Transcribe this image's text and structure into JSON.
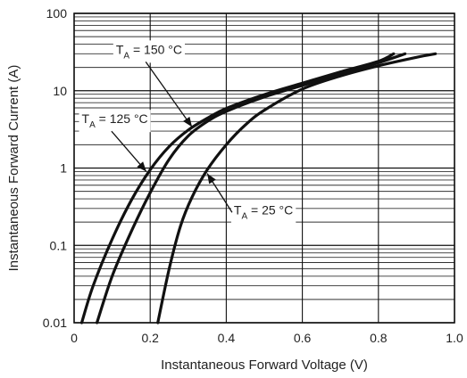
{
  "chart_data": {
    "type": "line",
    "title": "",
    "xlabel": "Instantaneous Forward Voltage (V)",
    "ylabel": "Instantaneous Forward Current (A)",
    "x_scale": "linear",
    "y_scale": "log",
    "xlim": [
      0,
      1.0
    ],
    "ylim": [
      0.01,
      100
    ],
    "x_ticks": [
      "0",
      "0.2",
      "0.4",
      "0.6",
      "0.8",
      "1.0"
    ],
    "x_tick_values": [
      0,
      0.2,
      0.4,
      0.6,
      0.8,
      1.0
    ],
    "y_ticks": [
      "0.01",
      "0.1",
      "1",
      "10",
      "100"
    ],
    "y_tick_values": [
      0.01,
      0.1,
      1,
      10,
      100
    ],
    "grid": true,
    "minor_grid": "log",
    "series": [
      {
        "label_main": "T",
        "label_sub": "A",
        "label_rest": " = 150 °C",
        "color": "#111111",
        "x": [
          0.02,
          0.05,
          0.1,
          0.15,
          0.2,
          0.25,
          0.3,
          0.35,
          0.4,
          0.5,
          0.6,
          0.7,
          0.8,
          0.84
        ],
        "y": [
          0.01,
          0.03,
          0.12,
          0.38,
          0.95,
          1.9,
          3.1,
          4.4,
          5.9,
          8.9,
          12.5,
          17.5,
          24,
          30
        ]
      },
      {
        "label_main": "T",
        "label_sub": "A",
        "label_rest": " = 125 °C",
        "color": "#111111",
        "x": [
          0.06,
          0.1,
          0.15,
          0.2,
          0.25,
          0.3,
          0.35,
          0.4,
          0.5,
          0.6,
          0.7,
          0.8,
          0.87
        ],
        "y": [
          0.01,
          0.04,
          0.15,
          0.48,
          1.3,
          2.6,
          4.0,
          5.4,
          8.3,
          11.7,
          16.5,
          23,
          30
        ]
      },
      {
        "label_main": "T",
        "label_sub": "A",
        "label_rest": " = 25 °C",
        "color": "#111111",
        "x": [
          0.22,
          0.25,
          0.28,
          0.31,
          0.35,
          0.4,
          0.45,
          0.5,
          0.6,
          0.7,
          0.8,
          0.9,
          0.95
        ],
        "y": [
          0.01,
          0.05,
          0.18,
          0.42,
          0.95,
          2.0,
          3.6,
          5.6,
          10.5,
          15.5,
          21,
          27,
          30
        ]
      }
    ],
    "annotations": [
      {
        "series": 0,
        "x": 0.31,
        "y": 3.4,
        "label_x": 0.11,
        "label_y": 30
      },
      {
        "series": 1,
        "x": 0.19,
        "y": 0.9,
        "label_x": 0.02,
        "label_y": 3.8
      },
      {
        "series": 2,
        "x": 0.35,
        "y": 0.85,
        "label_x": 0.42,
        "label_y": 0.25
      }
    ]
  }
}
